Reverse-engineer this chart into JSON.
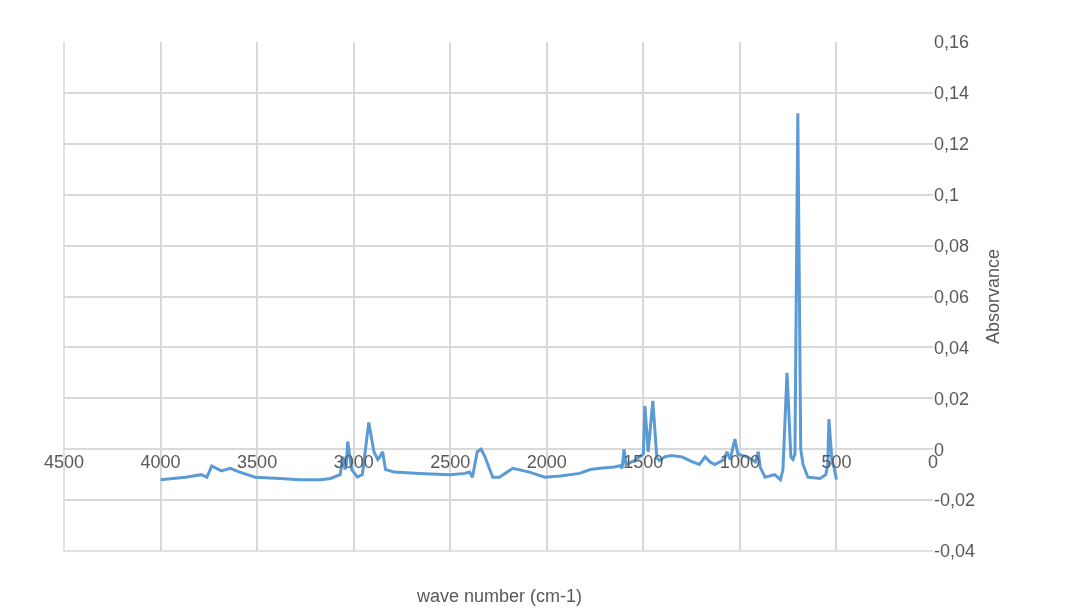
{
  "chart_data": {
    "type": "line",
    "xlabel": "wave number (cm-1)",
    "ylabel": "Absorvance",
    "x": [
      4000,
      3870,
      3790,
      3760,
      3735,
      3685,
      3640,
      3590,
      3510,
      3380,
      3280,
      3170,
      3120,
      3070,
      3055,
      3045,
      3038,
      3031,
      3010,
      2980,
      2955,
      2922,
      2895,
      2875,
      2865,
      2850,
      2835,
      2790,
      2660,
      2500,
      2425,
      2400,
      2385,
      2360,
      2340,
      2320,
      2280,
      2245,
      2176,
      2090,
      2010,
      1930,
      1830,
      1775,
      1725,
      1650,
      1620,
      1610,
      1600,
      1590,
      1545,
      1520,
      1500,
      1492,
      1475,
      1451,
      1430,
      1415,
      1390,
      1355,
      1300,
      1245,
      1210,
      1180,
      1155,
      1130,
      1080,
      1067,
      1050,
      1026,
      1010,
      960,
      920,
      905,
      895,
      870,
      820,
      790,
      777,
      756,
      736,
      725,
      715,
      700,
      685,
      673,
      648,
      585,
      555,
      545,
      539,
      523,
      513,
      500
    ],
    "series": [
      {
        "color": "#5b9bd5",
        "values": [
          -0.012,
          -0.011,
          -0.01,
          -0.011,
          -0.0066,
          -0.0085,
          -0.0075,
          -0.009,
          -0.011,
          -0.0115,
          -0.012,
          -0.012,
          -0.0115,
          -0.01,
          -0.003,
          -0.008,
          -0.006,
          0.003,
          -0.008,
          -0.011,
          -0.01,
          0.0105,
          -0.001,
          -0.004,
          -0.003,
          -0.001,
          -0.008,
          -0.009,
          -0.0095,
          -0.01,
          -0.0095,
          -0.009,
          -0.011,
          -0.001,
          0,
          -0.003,
          -0.011,
          -0.011,
          -0.0075,
          -0.009,
          -0.011,
          -0.0105,
          -0.0095,
          -0.008,
          -0.0075,
          -0.007,
          -0.0065,
          -0.0075,
          0,
          -0.006,
          -0.0045,
          -0.003,
          -0.002,
          0.017,
          -0.001,
          0.019,
          -0.0035,
          -0.0045,
          -0.003,
          -0.0025,
          -0.003,
          -0.005,
          -0.006,
          -0.003,
          -0.005,
          -0.006,
          -0.004,
          -0.001,
          -0.004,
          0.004,
          -0.002,
          -0.003,
          -0.005,
          -0.001,
          -0.007,
          -0.011,
          -0.01,
          -0.012,
          -0.008,
          0.03,
          -0.003,
          -0.004,
          -0.002,
          0.132,
          0,
          -0.006,
          -0.011,
          -0.0115,
          -0.01,
          -0.006,
          0.0118,
          -0.005,
          -0.007,
          -0.012
        ]
      }
    ],
    "xlim": [
      4500,
      0
    ],
    "xticks": [
      4500,
      4000,
      3500,
      3000,
      2500,
      2000,
      1500,
      1000,
      500,
      0
    ],
    "ylim": [
      -0.04,
      0.16
    ],
    "yticks": [
      {
        "value": -0.04,
        "label": "-0,04"
      },
      {
        "value": -0.02,
        "label": "-0,02"
      },
      0,
      {
        "value": 0.02,
        "label": "0,02"
      },
      {
        "value": 0.04,
        "label": "0,04"
      },
      {
        "value": 0.06,
        "label": "0,06"
      },
      {
        "value": 0.08,
        "label": "0,08"
      },
      {
        "value": 0.1,
        "label": "0,1"
      },
      {
        "value": 0.12,
        "label": "0,12"
      },
      {
        "value": 0.14,
        "label": "0,14"
      },
      {
        "value": 0.16,
        "label": "0,16"
      }
    ],
    "grid": true,
    "marker": "none",
    "line_style": "solid"
  }
}
